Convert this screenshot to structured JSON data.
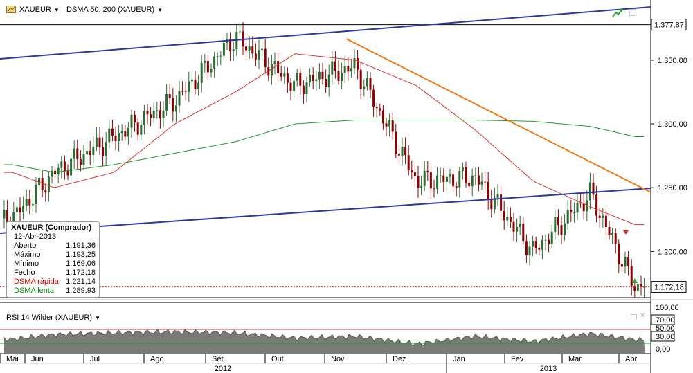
{
  "header": {
    "symbol": "XAUEUR",
    "indicator": "DSMA 50; 200 (XAUEUR)"
  },
  "info_box": {
    "title": "XAUEUR (Comprador)",
    "date": "12-Abr-2013",
    "rows": [
      {
        "label": "Aberto",
        "value": "1.191,36"
      },
      {
        "label": "Máximo",
        "value": "1.193,25"
      },
      {
        "label": "Mínimo",
        "value": "1.169,06"
      },
      {
        "label": "Fecho",
        "value": "1.172,18"
      },
      {
        "label": "DSMA rápida",
        "value": "1.221,14"
      },
      {
        "label": "DSMA lenta",
        "value": "1.289,93"
      }
    ]
  },
  "rsi_panel": {
    "label": "RSI 14 Wilder (XAUEUR)"
  },
  "colors": {
    "up_candle": "#2e6b33",
    "down_candle": "#8b0000",
    "sma_fast": "#e03030",
    "sma_slow": "#22962e",
    "trendline_blue": "#2b3a9a",
    "trendline_orange": "#f07a1a",
    "rsi_fill": "#7a7a7a",
    "rsi_high": "#e03030",
    "rsi_low": "#22962e"
  },
  "chart_data": [
    {
      "type": "candlestick",
      "title": "XAUEUR",
      "series_names": [
        "XAUEUR",
        "DSMA 50",
        "DSMA 200"
      ],
      "x_months": [
        "Mai",
        "Jun",
        "Jul",
        "Ago",
        "Set",
        "Out",
        "Nov",
        "Dez",
        "Jan",
        "Fev",
        "Mar",
        "Abr"
      ],
      "x_years": [
        "2012",
        "2013"
      ],
      "y_ticks": [
        "1.350,00",
        "1.300,00",
        "1.250,00",
        "1.200,00"
      ],
      "y_range": [
        1166,
        1395
      ],
      "price_labels": [
        "1.377,87",
        "1.172,18"
      ],
      "horizontal_level": 1377.87,
      "last_close": 1172.18,
      "close_by_month": [
        {
          "month": "Mai",
          "close": 1226
        },
        {
          "month": "Jun",
          "close": 1262
        },
        {
          "month": "Jul",
          "close": 1290
        },
        {
          "month": "Ago",
          "close": 1318
        },
        {
          "month": "Set",
          "close": 1368
        },
        {
          "month": "Out",
          "close": 1330
        },
        {
          "month": "Nov",
          "close": 1345
        },
        {
          "month": "Dez",
          "close": 1255
        },
        {
          "month": "Jan",
          "close": 1258
        },
        {
          "month": "Fev",
          "close": 1200
        },
        {
          "month": "Mar",
          "close": 1245
        },
        {
          "month": "Abr",
          "close": 1172
        }
      ],
      "dsma_fast_by_month": [
        {
          "month": "Mai",
          "value": 1262
        },
        {
          "month": "Jun",
          "value": 1250
        },
        {
          "month": "Jul",
          "value": 1262
        },
        {
          "month": "Ago",
          "value": 1300
        },
        {
          "month": "Set",
          "value": 1325
        },
        {
          "month": "Out",
          "value": 1355
        },
        {
          "month": "Nov",
          "value": 1350
        },
        {
          "month": "Dez",
          "value": 1330
        },
        {
          "month": "Jan",
          "value": 1295
        },
        {
          "month": "Fev",
          "value": 1255
        },
        {
          "month": "Mar",
          "value": 1235
        },
        {
          "month": "Abr",
          "value": 1221
        }
      ],
      "dsma_slow_by_month": [
        {
          "month": "Mai",
          "value": 1268
        },
        {
          "month": "Jun",
          "value": 1262
        },
        {
          "month": "Jul",
          "value": 1268
        },
        {
          "month": "Ago",
          "value": 1277
        },
        {
          "month": "Set",
          "value": 1286
        },
        {
          "month": "Out",
          "value": 1300
        },
        {
          "month": "Nov",
          "value": 1303
        },
        {
          "month": "Dez",
          "value": 1303
        },
        {
          "month": "Jan",
          "value": 1303
        },
        {
          "month": "Fev",
          "value": 1302
        },
        {
          "month": "Mar",
          "value": 1298
        },
        {
          "month": "Abr",
          "value": 1290
        }
      ]
    },
    {
      "type": "area",
      "title": "RSI 14 Wilder (XAUEUR)",
      "y_ticks": [
        "100,00",
        "70,00",
        "50,00",
        "30,00",
        "0,00"
      ],
      "y_range": [
        0,
        100
      ],
      "levels": [
        70,
        30
      ],
      "rsi_by_month": [
        {
          "month": "Mai",
          "value": 42
        },
        {
          "month": "Jun",
          "value": 55
        },
        {
          "month": "Jul",
          "value": 60
        },
        {
          "month": "Ago",
          "value": 63
        },
        {
          "month": "Set",
          "value": 60
        },
        {
          "month": "Out",
          "value": 45
        },
        {
          "month": "Nov",
          "value": 50
        },
        {
          "month": "Dez",
          "value": 28
        },
        {
          "month": "Jan",
          "value": 50
        },
        {
          "month": "Fev",
          "value": 35
        },
        {
          "month": "Mar",
          "value": 58
        },
        {
          "month": "Abr",
          "value": 40
        }
      ]
    }
  ]
}
